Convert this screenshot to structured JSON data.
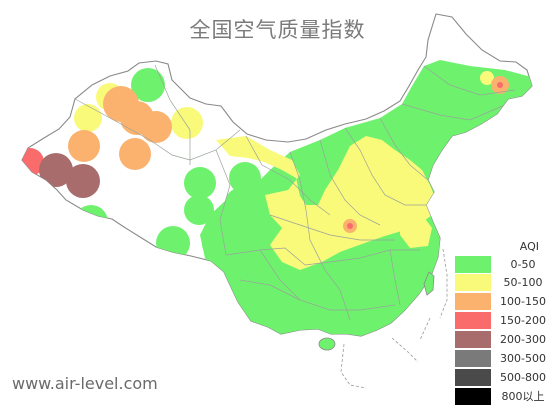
{
  "title": "全国空气质量指数",
  "website": "www.air-level.com",
  "legend": {
    "heading": "AQI",
    "items": [
      {
        "label": "0-50",
        "color": "#6ef26e"
      },
      {
        "label": "50-100",
        "color": "#f9f97a"
      },
      {
        "label": "100-150",
        "color": "#fbb26f"
      },
      {
        "label": "150-200",
        "color": "#fa6b6b"
      },
      {
        "label": "200-300",
        "color": "#a86c6c"
      },
      {
        "label": "300-500",
        "color": "#7a7a7a"
      },
      {
        "label": "500-800",
        "color": "#4a4a4a"
      },
      {
        "label": "800以上",
        "color": "#000000"
      }
    ]
  }
}
